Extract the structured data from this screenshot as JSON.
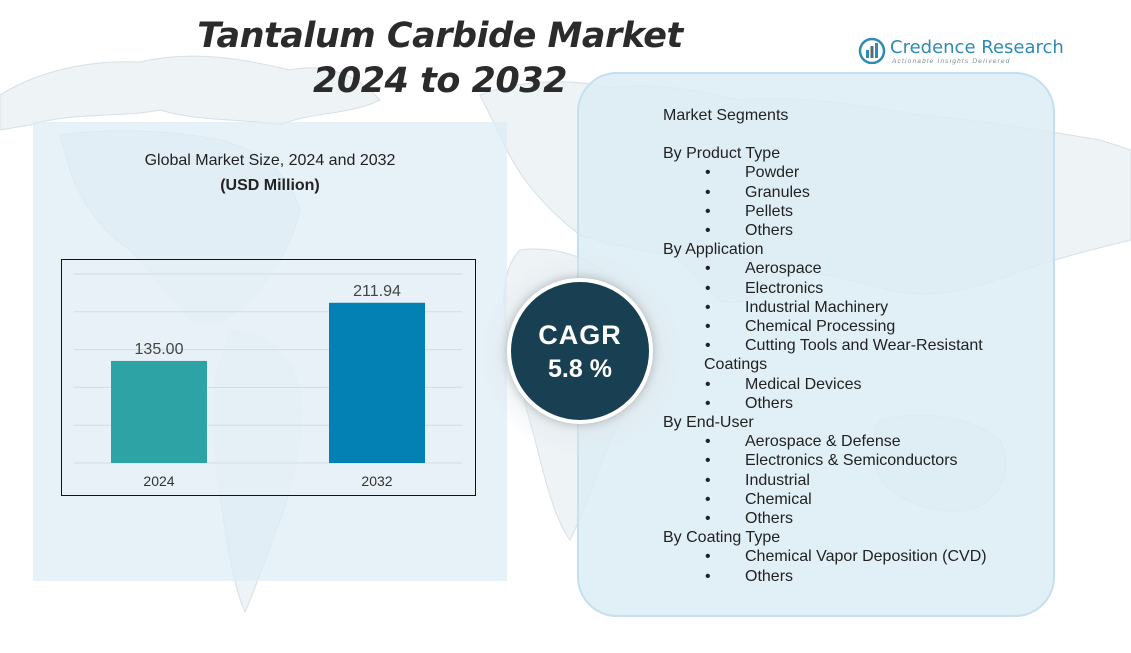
{
  "title": {
    "line1": "Tantalum Carbide Market",
    "line2": "2024 to 2032"
  },
  "brand": {
    "name": "Credence Research",
    "tagline": "Actionable Insights Delivered",
    "color": "#2d8bb5"
  },
  "chart_heading": {
    "line1": "Global Market Size,  2024 and 2032",
    "unit": "(USD Million)"
  },
  "chart_data": {
    "type": "bar",
    "title": "Global Market Size,  2024 and 2032",
    "ylabel": "(USD Million)",
    "categories": [
      "2024",
      "2032"
    ],
    "values": [
      135.0,
      211.94
    ],
    "value_labels": [
      "135.00",
      "211.94"
    ],
    "colors": [
      "#2ea3a6",
      "#0381b5"
    ],
    "ylim": [
      0,
      250
    ],
    "grid": true
  },
  "cagr": {
    "label": "CAGR",
    "value": "5.8 %"
  },
  "segments": {
    "title": "Market Segments",
    "groups": [
      {
        "name": "By Product Type",
        "items": [
          "Powder",
          "Granules",
          "Pellets",
          "Others"
        ]
      },
      {
        "name": "By Application",
        "items": [
          "Aerospace",
          "Electronics",
          "Industrial Machinery",
          "Chemical Processing",
          "Cutting Tools and Wear-Resistant",
          "Medical Devices",
          "Others"
        ],
        "continuation": "Coatings"
      },
      {
        "name": "By End-User",
        "items": [
          "Aerospace & Defense",
          "Electronics & Semiconductors",
          "Industrial",
          "Chemical",
          "Others"
        ]
      },
      {
        "name": "By Coating Type",
        "items": [
          "Chemical Vapor Deposition (CVD)",
          "Others"
        ]
      }
    ]
  }
}
